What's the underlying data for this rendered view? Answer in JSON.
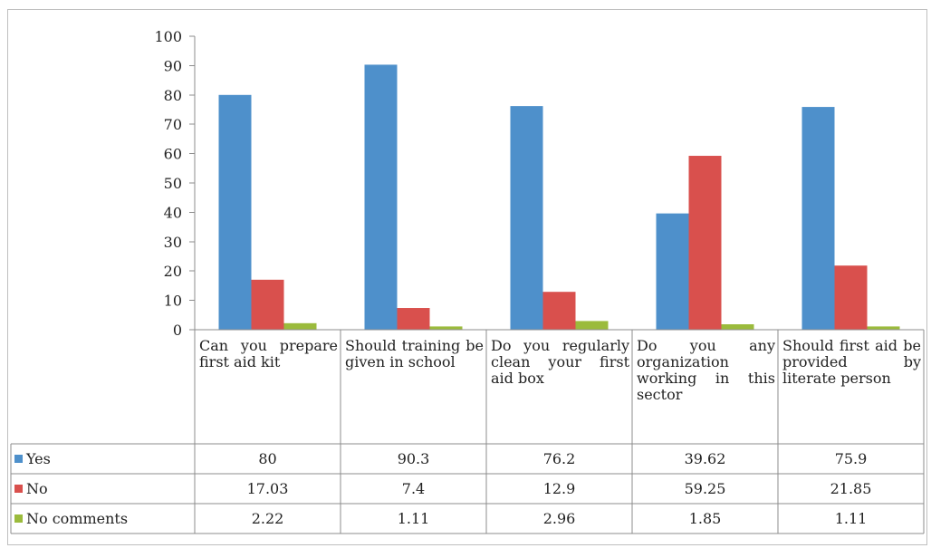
{
  "chart_data": {
    "type": "bar",
    "title": "",
    "xlabel": "",
    "ylabel": "",
    "ylim": [
      0,
      100
    ],
    "yticks": [
      0,
      10,
      20,
      30,
      40,
      50,
      60,
      70,
      80,
      90,
      100
    ],
    "grid": false,
    "legend": "data-table-left",
    "categories": [
      "Can you prepare first aid kit",
      "Should training be given in school",
      "Do you regularly clean your first aid box",
      "Do you any organization working in this sector",
      "Should first aid be provided by literate person"
    ],
    "series": [
      {
        "name": "Yes",
        "color": "#4e90cb",
        "values": [
          80,
          90.3,
          76.2,
          39.62,
          75.9
        ],
        "labels": [
          "80",
          "90.3",
          "76.2",
          "39.62",
          "75.9"
        ]
      },
      {
        "name": "No",
        "color": "#d9504d",
        "values": [
          17.03,
          7.4,
          12.9,
          59.25,
          21.85
        ],
        "labels": [
          "17.03",
          "7.4",
          "12.9",
          "59.25",
          "21.85"
        ]
      },
      {
        "name": "No comments",
        "color": "#9bbb3c",
        "values": [
          2.22,
          1.11,
          2.96,
          1.85,
          1.11
        ],
        "labels": [
          "2.22",
          "1.11",
          "2.96",
          "1.85",
          "1.11"
        ]
      }
    ]
  }
}
